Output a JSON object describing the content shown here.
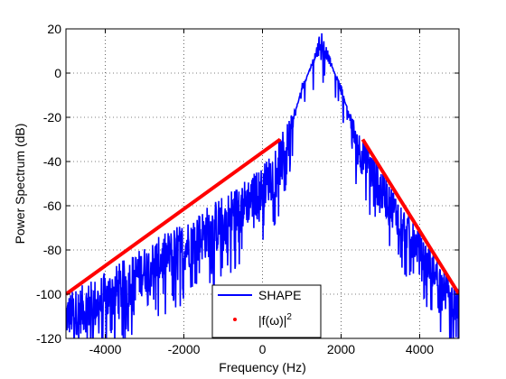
{
  "chart_data": {
    "type": "line",
    "title": "",
    "xlabel": "Frequency (Hz)",
    "ylabel": "Power Spectrum (dB)",
    "xlim": [
      -5000,
      5000
    ],
    "ylim": [
      -120,
      20
    ],
    "xticks": [
      -4000,
      -2000,
      0,
      2000,
      4000
    ],
    "xtick_labels": [
      "-4000",
      "-2000",
      "0",
      "2000",
      "4000"
    ],
    "yticks": [
      -120,
      -100,
      -80,
      -60,
      -40,
      -20,
      0,
      20
    ],
    "ytick_labels": [
      "-120",
      "-100",
      "-80",
      "-60",
      "-40",
      "-20",
      "0",
      "20"
    ],
    "grid": true,
    "legend_placement": "bottom-center",
    "series": [
      {
        "name": "SHAPE",
        "color": "#0000ff",
        "style": "noisy spectrum (band 1000–2000 Hz peak near 1500 Hz)",
        "envelope_x": [
          -5000,
          -4000,
          -3000,
          -2000,
          -1000,
          0,
          500,
          1000,
          1500,
          2000,
          2500,
          3000,
          4000,
          5000
        ],
        "envelope_upper_y": [
          -100,
          -90,
          -78,
          -67,
          -55,
          -42,
          -27,
          -10,
          20,
          -10,
          -27,
          -42,
          -72,
          -98
        ],
        "envelope_lower_y": [
          -120,
          -115,
          -100,
          -90,
          -80,
          -62,
          -50,
          -5,
          10,
          -5,
          -45,
          -62,
          -88,
          -115
        ]
      },
      {
        "name": "|f(ω)|²",
        "legend_label_base": "|f(ω)|",
        "legend_label_sup": "2",
        "color": "#ff0000",
        "style": "thick line segments (legend marker: dot)",
        "segments": [
          {
            "x": [
              -5000,
              450
            ],
            "y": [
              -100,
              -30
            ]
          },
          {
            "x": [
              2550,
              5000
            ],
            "y": [
              -30,
              -100
            ]
          }
        ]
      }
    ]
  }
}
